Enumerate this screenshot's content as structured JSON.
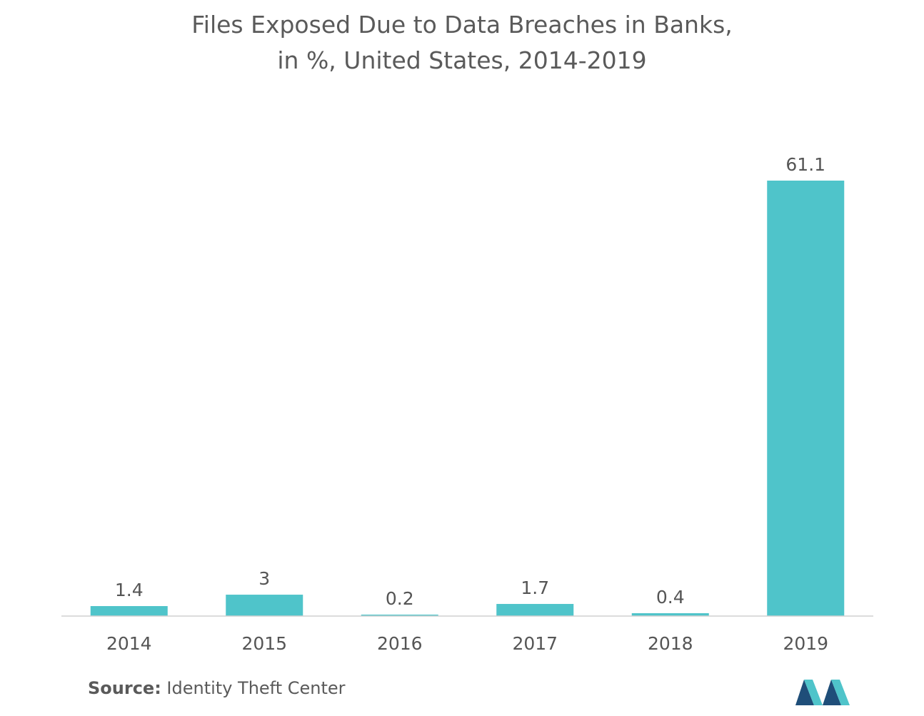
{
  "chart_data": {
    "type": "bar",
    "title_line1": "Files Exposed Due to Data Breaches in Banks,",
    "title_line2": "in %, United States, 2014-2019",
    "categories": [
      "2014",
      "2015",
      "2016",
      "2017",
      "2018",
      "2019"
    ],
    "values": [
      1.4,
      3,
      0.2,
      1.7,
      0.4,
      61.1
    ],
    "value_labels": [
      "1.4",
      "3",
      "0.2",
      "1.7",
      "0.4",
      "61.1"
    ],
    "xlabel": "",
    "ylabel": "",
    "ylim": [
      0,
      61.1
    ],
    "grid": false,
    "bar_color": "#4fc4ca",
    "axis_color": "#d0d0d0"
  },
  "source": {
    "label": "Source:",
    "text": " Identity Theft Center"
  },
  "logo": {
    "icon": "mordor-intelligence-logo",
    "colors": [
      "#1f4e79",
      "#4fc4ca"
    ]
  }
}
